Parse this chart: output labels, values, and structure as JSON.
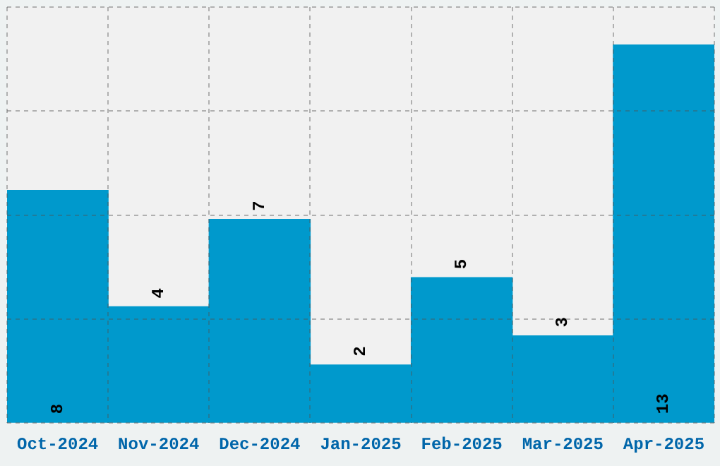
{
  "chart_data": {
    "type": "bar",
    "categories": [
      "Oct-2024",
      "Nov-2024",
      "Dec-2024",
      "Jan-2025",
      "Feb-2025",
      "Mar-2025",
      "Apr-2025"
    ],
    "values": [
      8,
      4,
      7,
      2,
      5,
      3,
      13
    ],
    "color": "#0099cc",
    "ylim": [
      0,
      14.3
    ],
    "yticks": [
      {
        "value": 0,
        "label": null
      },
      {
        "value": 3.575,
        "label": null
      },
      {
        "value": 7.15,
        "label": null
      },
      {
        "value": 10.725,
        "label": null
      },
      {
        "value": 14.3,
        "label": null
      }
    ],
    "tick_labels": "x",
    "grid": true,
    "data_labels": true
  }
}
